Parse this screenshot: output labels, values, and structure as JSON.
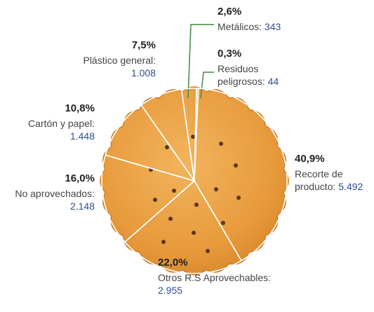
{
  "chart_data": {
    "type": "pie",
    "categories": [
      "Metálicos:",
      "Residuos peligrosos:",
      "Recorte de producto:",
      "Otros R.S Aprovechables:",
      "No aprovechados:",
      "Cartón y papel:",
      "Plástico general:"
    ],
    "values": [
      2.6,
      0.3,
      40.9,
      22.0,
      16.0,
      10.8,
      7.5
    ],
    "value_labels": [
      "2,6%",
      "0,3%",
      "40,9%",
      "22,0%",
      "16,0%",
      "10,8%",
      "7,5%"
    ],
    "counts": [
      343,
      44,
      5492,
      2955,
      2148,
      1448,
      1008
    ],
    "count_labels": [
      "343",
      "44",
      "5.492",
      "2.955",
      "2.148",
      "1.448",
      "1.008"
    ]
  }
}
